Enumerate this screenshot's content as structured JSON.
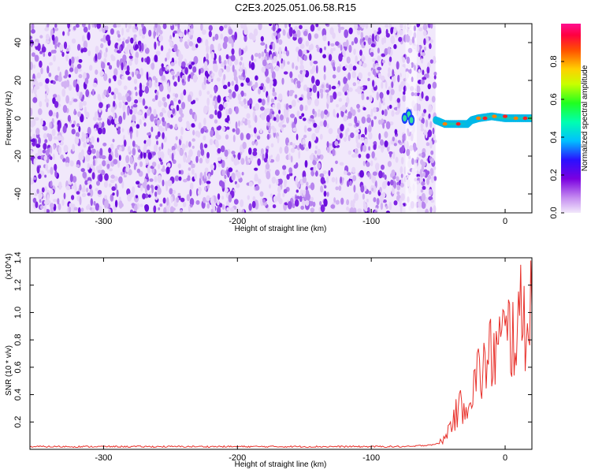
{
  "title": "C2E3.2025.051.06.58.R15",
  "chart_data": [
    {
      "type": "heatmap",
      "xlabel": "Height of straight line (km)",
      "ylabel": "Frequency (Hz)",
      "xlim": [
        -355,
        20
      ],
      "ylim": [
        -50,
        50
      ],
      "xticks": [
        -300,
        -200,
        -100,
        0
      ],
      "yticks": [
        -40,
        -20,
        0,
        20,
        40
      ],
      "colorbar": {
        "label": "Normalized spectral amplitude",
        "range": [
          0,
          1
        ],
        "ticks": [
          "0.0",
          "0.2",
          "0.4",
          "0.6",
          "0.8"
        ]
      },
      "noise_region_x": [
        -355,
        -52
      ],
      "signal_trace": [
        {
          "x": -52,
          "y": -1
        },
        {
          "x": -45,
          "y": -3
        },
        {
          "x": -35,
          "y": -3
        },
        {
          "x": -28,
          "y": -3
        },
        {
          "x": -25,
          "y": -1
        },
        {
          "x": -20,
          "y": 0
        },
        {
          "x": -10,
          "y": 1
        },
        {
          "x": 0,
          "y": 0
        },
        {
          "x": 10,
          "y": 0
        },
        {
          "x": 20,
          "y": 0
        }
      ]
    },
    {
      "type": "line",
      "xlabel": "Height of straight line (km)",
      "ylabel": "SNR (10 * v/v)",
      "y_multiplier": "(x10^4)",
      "xlim": [
        -355,
        20
      ],
      "ylim": [
        0,
        1.4
      ],
      "xticks": [
        -300,
        -200,
        -100,
        0
      ],
      "yticks": [
        0.2,
        0.4,
        0.6,
        0.8,
        1.0,
        1.2,
        1.4
      ],
      "series": [
        {
          "color": "#e8302a",
          "x": [
            -355,
            -300,
            -200,
            -100,
            -70,
            -60,
            -50,
            -45,
            -40,
            -35,
            -30,
            -25,
            -20,
            -15,
            -10,
            -5,
            0,
            5,
            10,
            15,
            20
          ],
          "y": [
            0.02,
            0.02,
            0.02,
            0.02,
            0.02,
            0.03,
            0.04,
            0.08,
            0.2,
            0.28,
            0.35,
            0.42,
            0.55,
            0.6,
            0.7,
            0.75,
            0.8,
            0.85,
            0.9,
            1.0,
            1.05
          ]
        }
      ]
    }
  ]
}
